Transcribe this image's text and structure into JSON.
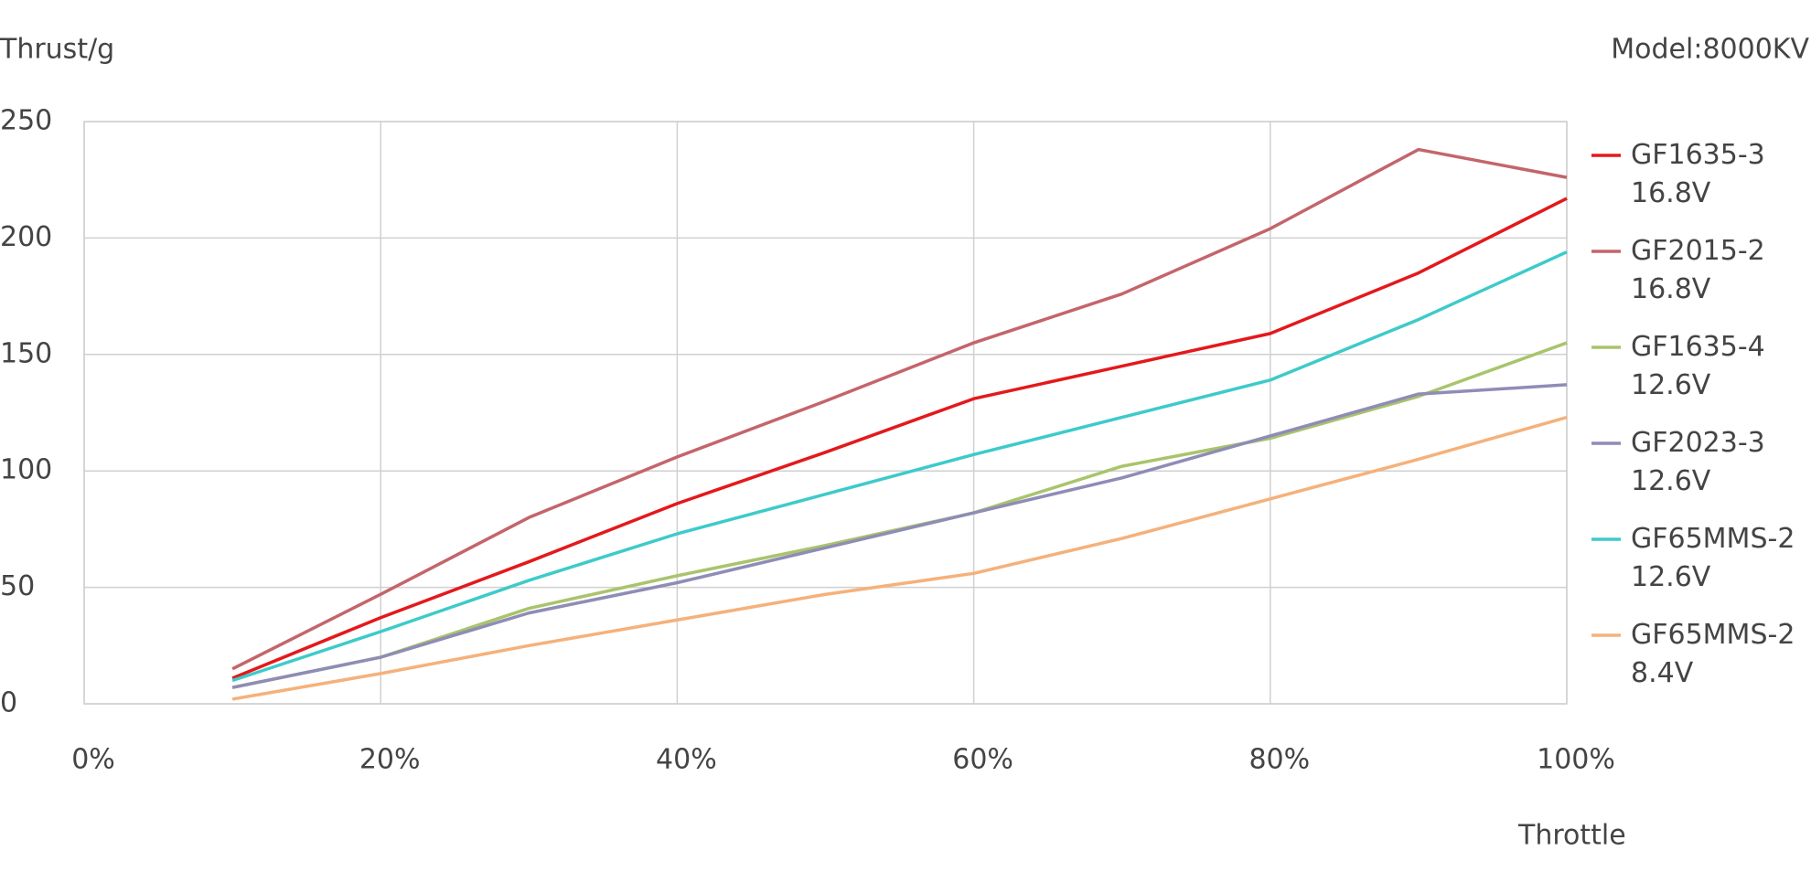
{
  "chart_data": {
    "type": "line",
    "annotation": "Model:8000KV",
    "y_label": "Thrust/g",
    "x_label": "Throttle",
    "x": [
      10,
      20,
      30,
      40,
      50,
      60,
      70,
      80,
      90,
      100
    ],
    "series": [
      {
        "name": "GF1635-3 16.8V",
        "color": "#e3191c",
        "values": [
          11,
          37,
          61,
          86,
          108,
          131,
          145,
          159,
          185,
          217
        ]
      },
      {
        "name": "GF2015-2 16.8V",
        "color": "#c4656b",
        "values": [
          15,
          47,
          80,
          106,
          130,
          155,
          176,
          204,
          238,
          226
        ]
      },
      {
        "name": "GF1635-4 12.6V",
        "color": "#a9c46c",
        "values": [
          7,
          20,
          41,
          55,
          68,
          82,
          102,
          114,
          132,
          155
        ]
      },
      {
        "name": "GF2023-3 12.6V",
        "color": "#8f8cb6",
        "values": [
          7,
          20,
          39,
          52,
          67,
          82,
          97,
          115,
          133,
          137
        ]
      },
      {
        "name": "GF65MMS-2 12.6V",
        "color": "#3ecaca",
        "values": [
          10,
          31,
          53,
          73,
          90,
          107,
          123,
          139,
          165,
          194
        ]
      },
      {
        "name": "GF65MMS-2 8.4V",
        "color": "#f5b17a",
        "values": [
          2,
          13,
          25,
          36,
          47,
          56,
          71,
          88,
          105,
          123
        ]
      }
    ],
    "xlim": [
      0,
      100
    ],
    "xticks": [
      {
        "value": 0,
        "label": "0%"
      },
      {
        "value": 20,
        "label": "20%"
      },
      {
        "value": 40,
        "label": "40%"
      },
      {
        "value": 60,
        "label": "60%"
      },
      {
        "value": 80,
        "label": "80%"
      },
      {
        "value": 100,
        "label": "100%"
      }
    ],
    "ylim": [
      0,
      250
    ],
    "yticks": [
      0,
      50,
      100,
      150,
      200,
      250
    ],
    "grid": true
  }
}
